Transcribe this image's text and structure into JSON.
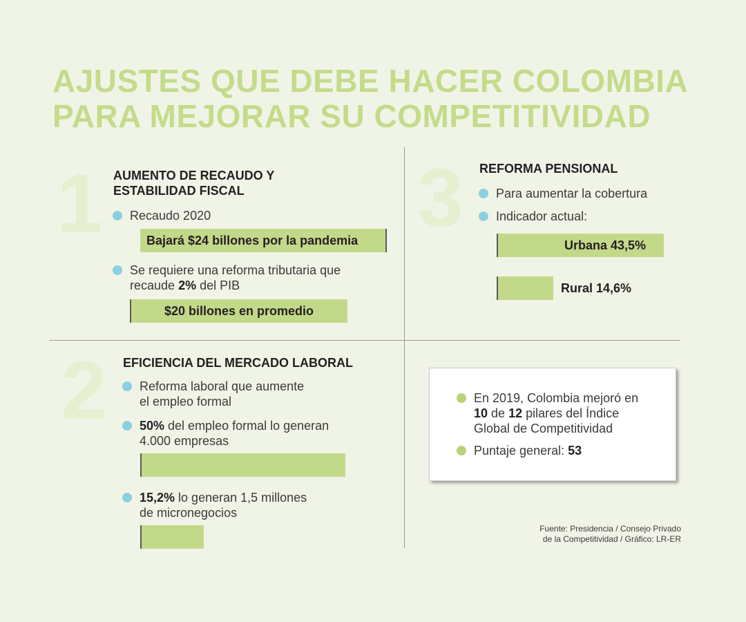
{
  "title": {
    "line1": "AJUSTES QUE DEBE HACER COLOMBIA",
    "line2": "PARA MEJORAR SU COMPETITIVIDAD"
  },
  "section1": {
    "number": "1",
    "title_line1": "AUMENTO DE RECAUDO Y",
    "title_line2": "ESTABILIDAD FISCAL",
    "bullet1": "Recaudo 2020",
    "bar1_label": "Bajará $24 billones por la pandemia",
    "bullet2_line1": "Se requiere una reforma tributaria que",
    "bullet2_pre": "recaude ",
    "bullet2_bold": "2%",
    "bullet2_post": " del PIB",
    "bar2_label": "$20 billones en promedio"
  },
  "section2": {
    "number": "2",
    "title": "EFICIENCIA DEL MERCADO LABORAL",
    "bullet1_line1": "Reforma laboral que aumente",
    "bullet1_line2": "el empleo formal",
    "bullet2_bold": "50%",
    "bullet2_rest": " del empleo formal lo generan",
    "bullet2_line2": "4.000 empresas",
    "bar1_value": 50,
    "bullet3_bold": "15,2%",
    "bullet3_rest": " lo generan 1,5 millones",
    "bullet3_line2": "de micronegocios",
    "bar2_value": 15.2
  },
  "section3": {
    "number": "3",
    "title": "REFORMA PENSIONAL",
    "bullet1": "Para aumentar la cobertura",
    "bullet2": "Indicador actual:",
    "bar1_label": "Urbana 43,5%",
    "bar1_value": 43.5,
    "bar2_label": "Rural 14,6%",
    "bar2_value": 14.6
  },
  "box": {
    "bullet1_line1": "En 2019, Colombia mejoró en",
    "bullet1_bold1": "10",
    "bullet1_mid": " de ",
    "bullet1_bold2": "12",
    "bullet1_rest": " pilares del Índice",
    "bullet1_line3": "Global de Competitividad",
    "bullet2_pre": "Puntaje general: ",
    "bullet2_bold": "53"
  },
  "source": {
    "line1": "Fuente: Presidencia / Consejo Privado",
    "line2": "de la Competitividad / Gráfico: LR-ER"
  },
  "colors": {
    "background": "#f0f4e7",
    "title": "#c4dc8a",
    "bar": "#c3d98a",
    "bullet_blue": "#8ccfe0",
    "bullet_green": "#b7d47a",
    "number": "#e6efcf"
  }
}
